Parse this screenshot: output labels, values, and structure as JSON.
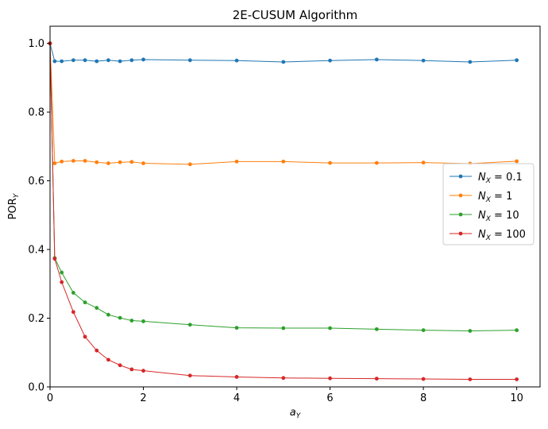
{
  "chart_data": {
    "type": "line",
    "title": "2E-CUSUM Algorithm",
    "xlabel": {
      "base": "a",
      "sub": "Y"
    },
    "ylabel": {
      "base": "POR",
      "sub": "Y"
    },
    "xlim": [
      0,
      10.5
    ],
    "ylim": [
      0,
      1.05
    ],
    "xticks": [
      0,
      2,
      4,
      6,
      8,
      10
    ],
    "yticks": [
      0.0,
      0.2,
      0.4,
      0.6,
      0.8,
      1.0
    ],
    "xtick_labels": [
      "0",
      "2",
      "4",
      "6",
      "8",
      "10"
    ],
    "ytick_labels": [
      "0.0",
      "0.2",
      "0.4",
      "0.6",
      "0.8",
      "1.0"
    ],
    "grid": false,
    "legend_position": "center-right",
    "x": [
      0,
      0.1,
      0.25,
      0.5,
      0.75,
      1,
      1.25,
      1.5,
      1.75,
      2,
      3,
      4,
      5,
      6,
      7,
      8,
      9,
      10
    ],
    "series": [
      {
        "name": "N_X = 0.1",
        "legend_label": {
          "base": "N",
          "sub": "X",
          "rest": " = 0.1"
        },
        "color": "#1f77b4",
        "values": [
          1.0,
          0.948,
          0.948,
          0.951,
          0.951,
          0.948,
          0.951,
          0.948,
          0.951,
          0.953,
          0.951,
          0.95,
          0.946,
          0.95,
          0.953,
          0.95,
          0.946,
          0.951
        ]
      },
      {
        "name": "N_X = 1",
        "legend_label": {
          "base": "N",
          "sub": "X",
          "rest": " = 1"
        },
        "color": "#ff7f0e",
        "values": [
          1.0,
          0.651,
          0.656,
          0.658,
          0.658,
          0.654,
          0.651,
          0.654,
          0.655,
          0.651,
          0.648,
          0.656,
          0.656,
          0.652,
          0.652,
          0.653,
          0.65,
          0.657
        ]
      },
      {
        "name": "N_X = 10",
        "legend_label": {
          "base": "N",
          "sub": "X",
          "rest": " = 10"
        },
        "color": "#2ca02c",
        "values": [
          1.0,
          0.375,
          0.333,
          0.274,
          0.246,
          0.23,
          0.21,
          0.201,
          0.193,
          0.191,
          0.181,
          0.172,
          0.171,
          0.171,
          0.168,
          0.165,
          0.163,
          0.165
        ]
      },
      {
        "name": "N_X = 100",
        "legend_label": {
          "base": "N",
          "sub": "X",
          "rest": " = 100"
        },
        "color": "#d62728",
        "values": [
          1.0,
          0.373,
          0.305,
          0.218,
          0.146,
          0.106,
          0.079,
          0.063,
          0.051,
          0.047,
          0.033,
          0.029,
          0.026,
          0.025,
          0.024,
          0.023,
          0.022,
          0.022
        ]
      }
    ]
  }
}
